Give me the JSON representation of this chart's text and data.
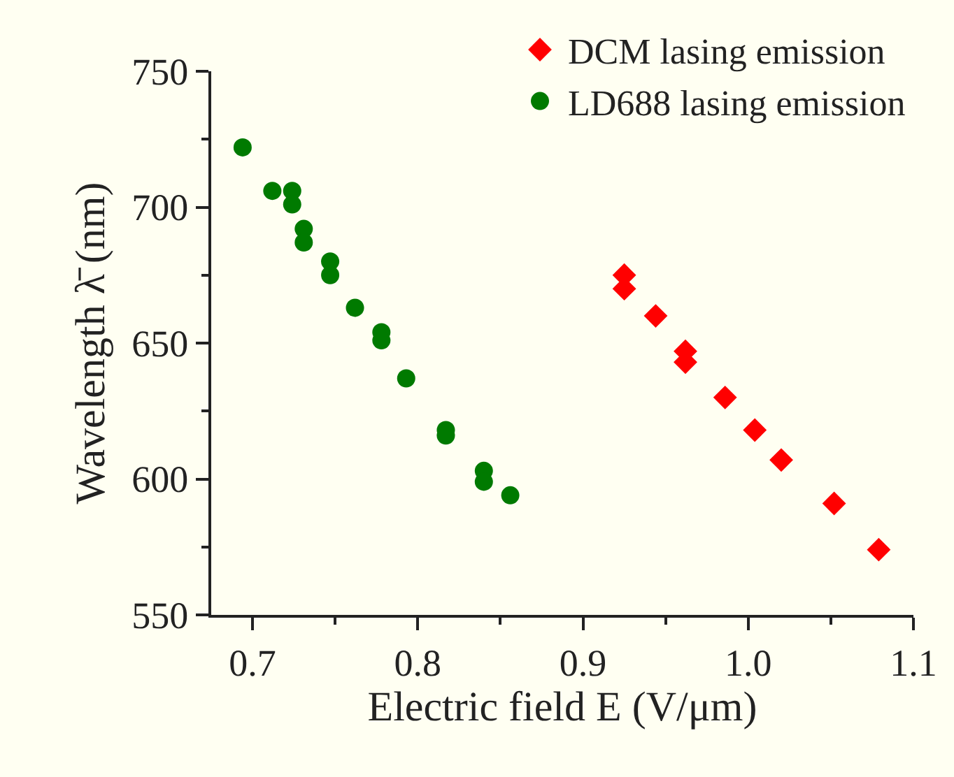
{
  "chart_data": {
    "type": "scatter",
    "xlabel": "Electric field E (V/μm)",
    "ylabel": "Wavelength λ̄ (nm)",
    "xlim": [
      0.675,
      1.1
    ],
    "xticks": [
      {
        "value": 0.7,
        "label": "0.7"
      },
      {
        "value": 0.8,
        "label": "0.8"
      },
      {
        "value": 0.9,
        "label": "0.9"
      },
      {
        "value": 1.0,
        "label": "1.0"
      },
      {
        "value": 1.1,
        "label": "1.1"
      }
    ],
    "ylim": [
      550,
      750
    ],
    "yticks": [
      550,
      600,
      650,
      700,
      750
    ],
    "grid": false,
    "legend": "top right",
    "series": [
      {
        "name": "DCM lasing emission",
        "color": "#ff0000",
        "marker": "diamond",
        "x": [
          0.925,
          0.925,
          0.944,
          0.962,
          0.962,
          0.986,
          1.004,
          1.02,
          1.052,
          1.079
        ],
        "values": [
          675,
          670,
          660,
          647,
          643,
          630,
          618,
          607,
          591,
          574
        ]
      },
      {
        "name": "LD688 lasing emission",
        "color": "#007a00",
        "marker": "circle",
        "x": [
          0.694,
          0.712,
          0.724,
          0.724,
          0.731,
          0.731,
          0.747,
          0.747,
          0.762,
          0.778,
          0.778,
          0.793,
          0.817,
          0.817,
          0.84,
          0.84,
          0.856
        ],
        "values": [
          722,
          706,
          706,
          701,
          692,
          687,
          680,
          675,
          663,
          654,
          651,
          637,
          618,
          616,
          603,
          599,
          594
        ]
      }
    ]
  }
}
